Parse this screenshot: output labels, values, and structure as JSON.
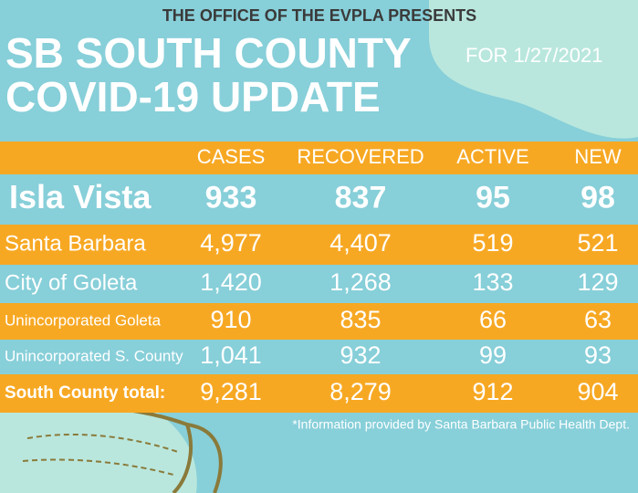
{
  "header": {
    "presenter": "THE OFFICE OF THE EVPLA PRESENTS",
    "title_lines": [
      "SB SOUTH COUNTY",
      "COVID-19 UPDATE"
    ],
    "date": "FOR 1/27/2021"
  },
  "table": {
    "columns": [
      "CASES",
      "RECOVERED",
      "ACTIVE",
      "NEW"
    ],
    "rows": [
      [
        "Isla Vista",
        "933",
        "837",
        "95",
        "98"
      ],
      [
        "Santa Barbara",
        "4,977",
        "4,407",
        "519",
        "521"
      ],
      [
        "City of Goleta",
        "1,420",
        "1,268",
        "133",
        "129"
      ],
      [
        "Unincorporated Goleta",
        "910",
        "835",
        "66",
        "63"
      ],
      [
        "Unincorporated S. County",
        "1,041",
        "932",
        "99",
        "93"
      ],
      [
        "South County total:",
        "9,281",
        "8,279",
        "912",
        "904"
      ]
    ]
  },
  "footnote": "*Information provided by Santa Barbara Public Health Dept."
}
